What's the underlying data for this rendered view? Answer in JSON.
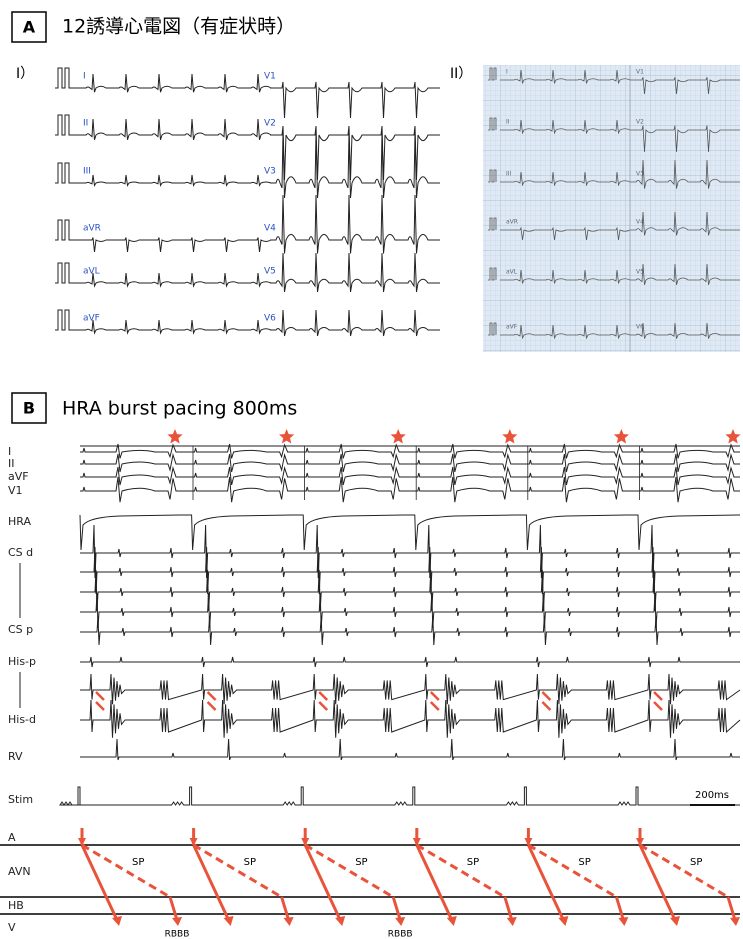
{
  "panel_a": {
    "label": "A",
    "title": "12誘導心電図（有症状時）",
    "part_1": {
      "label": "I）",
      "limb_leads": [
        "I",
        "II",
        "III",
        "aVR",
        "aVL",
        "aVF"
      ],
      "chest_leads": [
        "V1",
        "V2",
        "V3",
        "V4",
        "V5",
        "V6"
      ]
    },
    "part_2": {
      "label": "II）",
      "limb_leads": [
        "I",
        "II",
        "III",
        "aVR",
        "aVL",
        "aVF"
      ],
      "chest_leads": [
        "V1",
        "V2",
        "V3",
        "V4",
        "V5",
        "V6"
      ]
    }
  },
  "panel_b": {
    "label": "B",
    "title": "HRA burst pacing  800ms",
    "channels": [
      "I",
      "II",
      "aVF",
      "V1",
      "HRA",
      "CS d",
      "CS p",
      "His-p",
      "His-d",
      "RV",
      "Stim"
    ],
    "scale_bar": "200ms",
    "ladder": {
      "levels": [
        "A",
        "AVN",
        "HB",
        "V"
      ],
      "slow_pathway": [
        "SP",
        "SP",
        "SP",
        "SP",
        "SP",
        "SP"
      ],
      "conduction": [
        "RBBB",
        "RBBB"
      ]
    }
  }
}
